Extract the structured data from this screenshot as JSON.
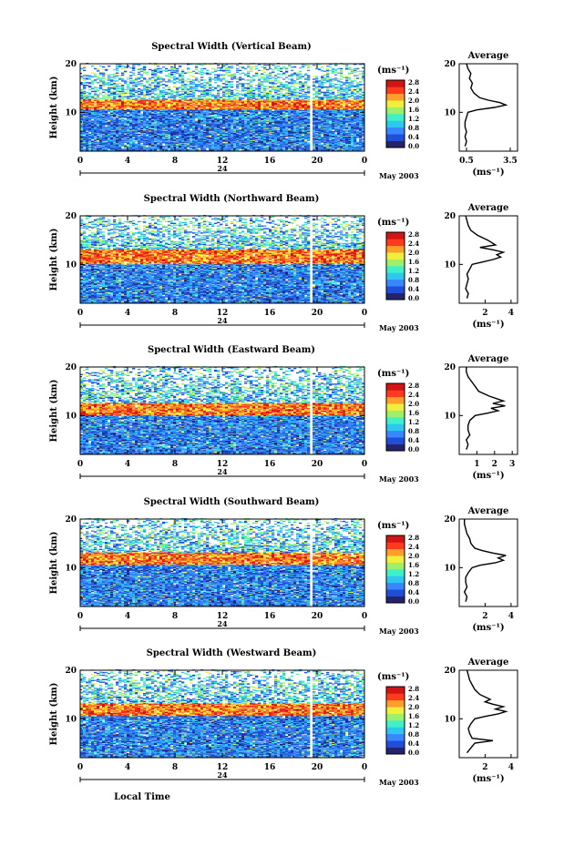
{
  "figure": {
    "xlabel": "Local Time",
    "date_label": "May 2003",
    "day_label": "24",
    "unit_label": "(ms⁻¹)",
    "average_title": "Average",
    "colorbar_ticks": [
      "0.0",
      "0.4",
      "0.8",
      "1.2",
      "1.6",
      "2.0",
      "2.4",
      "2.8"
    ],
    "colors": {
      "colormap": [
        "#24246e",
        "#1f4fd8",
        "#3a86ff",
        "#2ec7f0",
        "#3ff0c8",
        "#9ef06a",
        "#f0f03c",
        "#ff9f2a",
        "#ff3a1e",
        "#d21414"
      ],
      "gap": "#ffffff"
    }
  },
  "chart_data": [
    {
      "type": "heatmap",
      "title": "Spectral Width (Vertical Beam)",
      "xlabel": "",
      "ylabel": "Height (km)",
      "x_ticks": [
        "0",
        "4",
        "8",
        "12",
        "16",
        "20",
        "0"
      ],
      "y_ticks": [
        "10",
        "20"
      ],
      "xlim": [
        0,
        24
      ],
      "ylim": [
        2,
        20
      ],
      "color_range": [
        0.0,
        3.0
      ],
      "data_gap_time": 19.5,
      "strong_layer_km": [
        10.5,
        12.5
      ],
      "average_profile": {
        "xlabel": "(ms⁻¹)",
        "x_ticks": [
          "0.5",
          "3.5"
        ],
        "xlim": [
          0.0,
          4.0
        ],
        "heights": [
          3,
          4,
          5,
          6,
          7,
          8,
          9,
          10,
          10.5,
          11,
          11.5,
          12,
          12.5,
          13,
          14,
          15,
          16,
          17,
          18,
          19,
          20
        ],
        "values": [
          0.4,
          0.5,
          0.4,
          0.5,
          0.4,
          0.4,
          0.5,
          0.6,
          1.2,
          2.4,
          3.2,
          2.8,
          2.0,
          1.4,
          1.0,
          0.8,
          0.9,
          0.7,
          0.8,
          0.6,
          0.5
        ]
      }
    },
    {
      "type": "heatmap",
      "title": "Spectral Width (Northward Beam)",
      "xlabel": "",
      "ylabel": "Height (km)",
      "x_ticks": [
        "0",
        "4",
        "8",
        "12",
        "16",
        "20",
        "0"
      ],
      "y_ticks": [
        "10",
        "20"
      ],
      "xlim": [
        0,
        24
      ],
      "ylim": [
        2,
        20
      ],
      "color_range": [
        0.0,
        3.0
      ],
      "data_gap_time": 19.5,
      "strong_layer_km": [
        10.0,
        13.0
      ],
      "average_profile": {
        "xlabel": "(ms⁻¹)",
        "x_ticks": [
          "2",
          "4"
        ],
        "xlim": [
          0.0,
          4.5
        ],
        "heights": [
          3,
          4,
          5,
          6,
          7,
          8,
          9,
          10,
          10.5,
          11,
          11.5,
          12,
          12.5,
          13,
          13.5,
          14,
          15,
          16,
          17,
          18,
          19,
          20
        ],
        "values": [
          0.6,
          0.7,
          0.5,
          0.6,
          0.7,
          0.6,
          0.8,
          1.0,
          1.8,
          2.6,
          3.2,
          2.9,
          3.4,
          2.6,
          1.6,
          2.8,
          2.2,
          1.4,
          0.9,
          0.7,
          0.6,
          0.5
        ]
      }
    },
    {
      "type": "heatmap",
      "title": "Spectral Width (Eastward Beam)",
      "xlabel": "",
      "ylabel": "Height (km)",
      "x_ticks": [
        "0",
        "4",
        "8",
        "12",
        "16",
        "20",
        "0"
      ],
      "y_ticks": [
        "10",
        "20"
      ],
      "xlim": [
        0,
        24
      ],
      "ylim": [
        2,
        20
      ],
      "color_range": [
        0.0,
        3.0
      ],
      "data_gap_time": 19.5,
      "strong_layer_km": [
        10.0,
        12.5
      ],
      "average_profile": {
        "xlabel": "(ms⁻¹)",
        "x_ticks": [
          "1",
          "2",
          "3"
        ],
        "xlim": [
          0.0,
          3.3
        ],
        "heights": [
          3,
          4,
          5,
          6,
          7,
          8,
          9,
          10,
          10.5,
          11,
          11.5,
          12,
          12.5,
          13,
          14,
          15,
          16,
          17,
          18,
          19,
          20
        ],
        "values": [
          0.4,
          0.5,
          0.4,
          0.6,
          0.5,
          0.5,
          0.6,
          0.9,
          1.6,
          2.2,
          1.8,
          2.6,
          1.9,
          2.5,
          1.7,
          1.1,
          0.9,
          0.7,
          0.5,
          0.4,
          0.4
        ]
      }
    },
    {
      "type": "heatmap",
      "title": "Spectral Width (Southward Beam)",
      "xlabel": "",
      "ylabel": "Height (km)",
      "x_ticks": [
        "0",
        "4",
        "8",
        "12",
        "16",
        "20",
        "0"
      ],
      "y_ticks": [
        "10",
        "20"
      ],
      "xlim": [
        0,
        24
      ],
      "ylim": [
        2,
        20
      ],
      "color_range": [
        0.0,
        3.0
      ],
      "data_gap_time": 19.5,
      "strong_layer_km": [
        10.5,
        13.0
      ],
      "average_profile": {
        "xlabel": "(ms⁻¹)",
        "x_ticks": [
          "2",
          "4"
        ],
        "xlim": [
          0.0,
          4.5
        ],
        "heights": [
          3,
          4,
          5,
          6,
          7,
          8,
          9,
          10,
          10.5,
          11,
          11.5,
          12,
          12.5,
          13,
          13.5,
          14,
          15,
          16,
          17,
          18,
          19,
          20
        ],
        "values": [
          0.5,
          0.6,
          0.4,
          0.6,
          0.5,
          0.5,
          0.7,
          1.0,
          1.6,
          2.8,
          3.4,
          3.0,
          3.6,
          2.6,
          1.8,
          1.2,
          0.9,
          0.8,
          0.6,
          0.5,
          0.4,
          0.4
        ]
      }
    },
    {
      "type": "heatmap",
      "title": "Spectral Width (Westward Beam)",
      "xlabel": "Local Time",
      "ylabel": "Height (km)",
      "x_ticks": [
        "0",
        "4",
        "8",
        "12",
        "16",
        "20",
        "0"
      ],
      "y_ticks": [
        "10",
        "20"
      ],
      "xlim": [
        0,
        24
      ],
      "ylim": [
        2,
        20
      ],
      "color_range": [
        0.0,
        3.0
      ],
      "data_gap_time": 19.5,
      "strong_layer_km": [
        10.5,
        13.0
      ],
      "average_profile": {
        "xlabel": "(ms⁻¹)",
        "x_ticks": [
          "2",
          "4"
        ],
        "xlim": [
          0.0,
          4.5
        ],
        "heights": [
          3,
          4,
          5,
          5.5,
          6,
          7,
          8,
          9,
          10,
          10.5,
          11,
          11.5,
          12,
          12.5,
          13,
          13.5,
          14,
          15,
          16,
          17,
          18,
          19,
          20
        ],
        "values": [
          0.6,
          0.9,
          1.2,
          2.6,
          1.0,
          0.8,
          0.7,
          0.9,
          1.2,
          2.0,
          3.0,
          3.6,
          2.8,
          3.4,
          2.6,
          2.0,
          2.4,
          1.6,
          1.2,
          1.0,
          0.8,
          0.7,
          0.6
        ]
      }
    }
  ]
}
